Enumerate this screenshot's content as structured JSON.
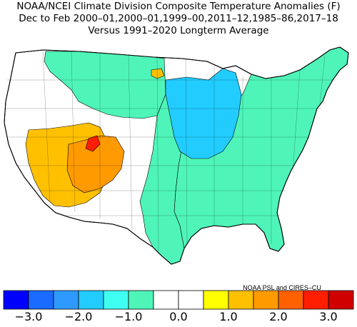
{
  "title_line_1": "NOAA/NCEI Climate Division Composite Temperature Anomalies (F)",
  "title_line_2": "Dec to Feb  2000–01,2000–01,1999–00,2011–12,1985–86,2017–18",
  "title_line_3": "Versus 1991–2020 Longterm Average",
  "credit": "NOAA PSL and CIRES–CU",
  "colorbar": {
    "bins": [
      {
        "color": "#0000ff"
      },
      {
        "color": "#1a6bff"
      },
      {
        "color": "#2e9aff"
      },
      {
        "color": "#22ccff"
      },
      {
        "color": "#3ffff2"
      },
      {
        "color": "#4ff5b8"
      },
      {
        "color": "#ffffff"
      },
      {
        "color": "#ffffff"
      },
      {
        "color": "#ffff00"
      },
      {
        "color": "#ffc000"
      },
      {
        "color": "#ff9a00"
      },
      {
        "color": "#ff6000"
      },
      {
        "color": "#ff1e00"
      },
      {
        "color": "#d00000"
      }
    ],
    "tick_values": [
      -3.0,
      -2.0,
      -1.0,
      0.0,
      1.0,
      2.0,
      3.0
    ],
    "tick_labels": [
      "−3.0",
      "−2.0",
      "−1.0",
      "0.0",
      "1.0",
      "2.0",
      "3.0"
    ]
  },
  "regions": [
    {
      "name": "northwest",
      "anomaly": 0.0
    },
    {
      "name": "montana-high-plains",
      "anomaly": -1.0
    },
    {
      "name": "nevada-arizona",
      "anomaly": 1.0
    },
    {
      "name": "utah-colorado-core",
      "anomaly": 1.5
    },
    {
      "name": "utah-hotspot",
      "anomaly": 2.5
    },
    {
      "name": "upper-midwest",
      "anomaly": -1.8
    },
    {
      "name": "great-plains",
      "anomaly": -1.0
    },
    {
      "name": "east-southeast",
      "anomaly": -1.0
    },
    {
      "name": "north-dakota-pocket",
      "anomaly": 1.0
    }
  ]
}
